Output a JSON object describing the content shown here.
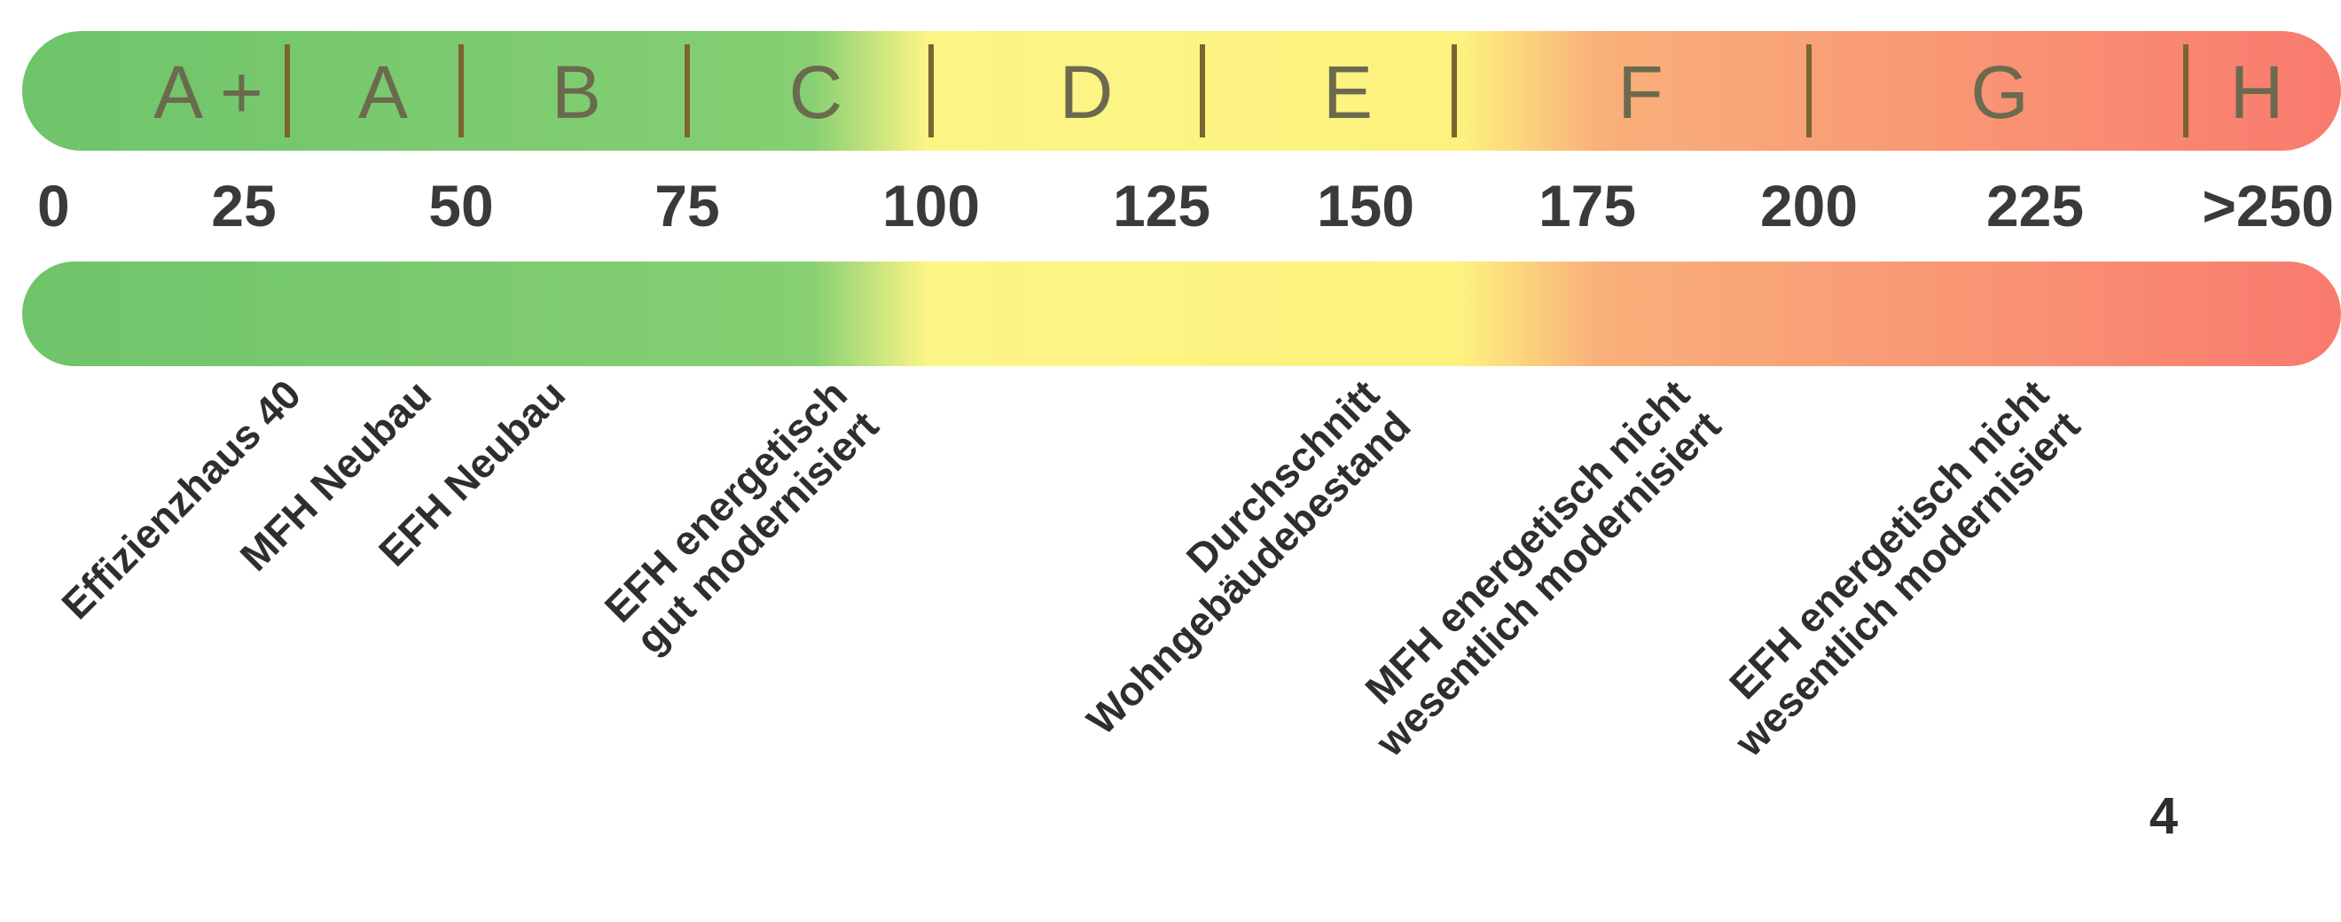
{
  "scale": {
    "colors": {
      "green": "#6fc46a",
      "yellow": "#fbf586",
      "orange": "#f9b07a",
      "red": "#f97a6e",
      "divider": "#7a6432"
    },
    "classes": [
      {
        "label": "A +",
        "from": 0,
        "to": 30
      },
      {
        "label": "A",
        "from": 30,
        "to": 50
      },
      {
        "label": "B",
        "from": 50,
        "to": 75
      },
      {
        "label": "C",
        "from": 75,
        "to": 100
      },
      {
        "label": "D",
        "from": 100,
        "to": 130
      },
      {
        "label": "E",
        "from": 130,
        "to": 160
      },
      {
        "label": "F",
        "from": 160,
        "to": 200
      },
      {
        "label": "G",
        "from": 200,
        "to": 250
      },
      {
        "label": "H",
        "from": 250,
        "to": 265
      }
    ],
    "ticks": [
      {
        "label": "0",
        "value": 0
      },
      {
        "label": "25",
        "value": 25
      },
      {
        "label": "50",
        "value": 50
      },
      {
        "label": "75",
        "value": 75
      },
      {
        "label": "100",
        "value": 100
      },
      {
        "label": "125",
        "value": 125
      },
      {
        "label": "150",
        "value": 150
      },
      {
        "label": "175",
        "value": 175
      },
      {
        "label": "200",
        "value": 200
      },
      {
        "label": "225",
        "value": 225
      },
      {
        "label": ">250",
        "value": 250
      }
    ]
  },
  "buildings": [
    {
      "lines": [
        "Effizienzhaus 40"
      ],
      "value": 30
    },
    {
      "lines": [
        "MFH Neubau"
      ],
      "value": 45
    },
    {
      "lines": [
        "EFH Neubau"
      ],
      "value": 60
    },
    {
      "lines": [
        "EFH energetisch",
        "gut modernisiert"
      ],
      "value": 90
    },
    {
      "lines": [
        "Durchschnitt",
        "Wohngebäudebestand"
      ],
      "value": 150
    },
    {
      "lines": [
        "MFH energetisch nicht",
        "wesentlich modernisiert"
      ],
      "value": 185
    },
    {
      "lines": [
        "EFH energetisch nicht",
        "wesentlich modernisiert"
      ],
      "value": 225
    }
  ],
  "page_number": "4"
}
